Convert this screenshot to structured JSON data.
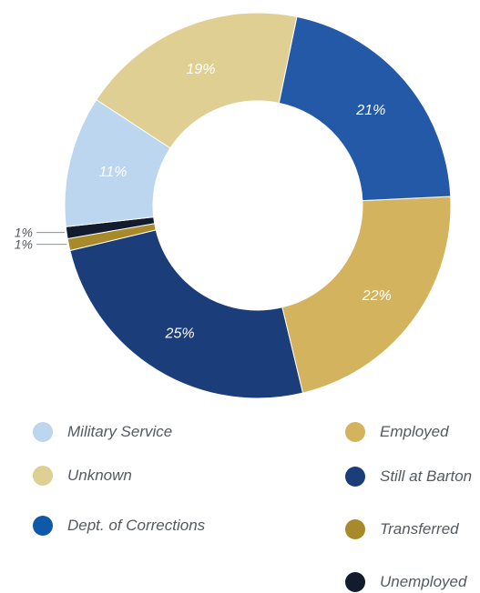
{
  "chart_data": {
    "type": "pie",
    "donut": true,
    "order": [
      "Still at Barton",
      "Employed",
      "Unknown",
      "Military Service",
      "Dept. of Corrections",
      "Transferred",
      "Unemployed"
    ],
    "slices": [
      {
        "name": "Employed",
        "value": 22,
        "label": "22%",
        "color": "#d4b35f"
      },
      {
        "name": "Still at Barton",
        "value": 25,
        "label": "25%",
        "color": "#1b3d7a"
      },
      {
        "name": "Transferred",
        "value": 1,
        "label": "1%",
        "color": "#a88a2a"
      },
      {
        "name": "Unemployed",
        "value": 1,
        "label": "1%",
        "color": "#131b2e"
      },
      {
        "name": "Military Service",
        "value": 11,
        "label": "11%",
        "color": "#bcd6ef"
      },
      {
        "name": "Unknown",
        "value": 19,
        "label": "19%",
        "color": "#dfcf92"
      },
      {
        "name": "Dept. of Corrections",
        "value": 21,
        "label": "21%",
        "color": "#2459a8"
      }
    ],
    "legend": [
      {
        "name": "Military Service",
        "color": "#bcd6ef"
      },
      {
        "name": "Unknown",
        "color": "#dfcf92"
      },
      {
        "name": "Dept. of Corrections",
        "color": "#0e5aa8"
      },
      {
        "name": "Employed",
        "color": "#d4b35f"
      },
      {
        "name": "Still at Barton",
        "color": "#1b3d7a"
      },
      {
        "name": "Transferred",
        "color": "#a88a2a"
      },
      {
        "name": "Unemployed",
        "color": "#131b2e"
      }
    ]
  }
}
